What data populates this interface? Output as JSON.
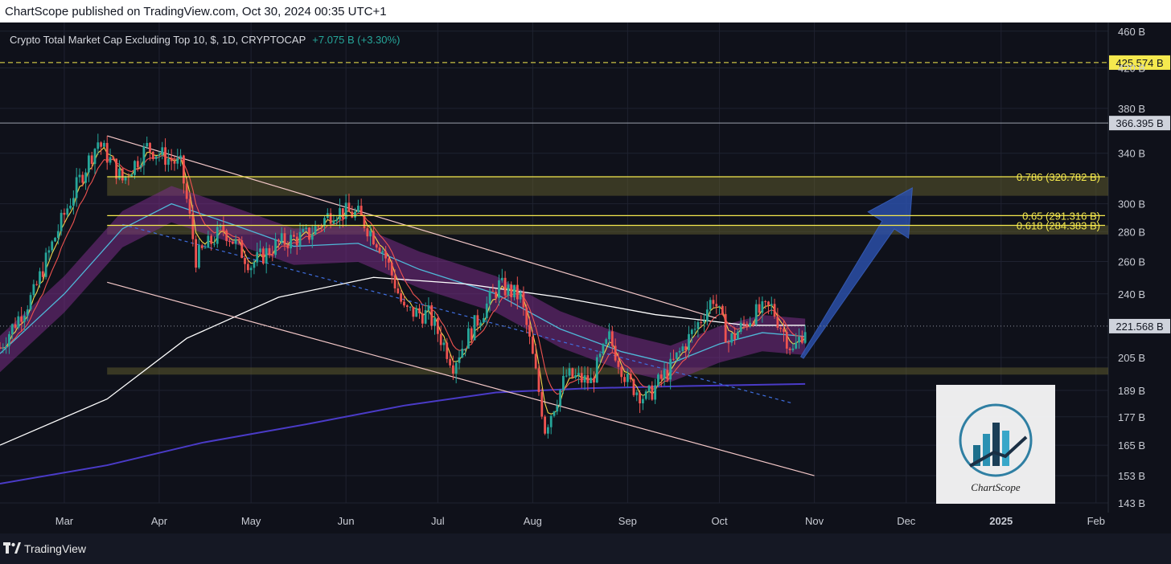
{
  "header": {
    "published": "ChartScope published on TradingView.com, Oct 30, 2024 00:35 UTC+1"
  },
  "symbol": {
    "title": "Crypto Total Market Cap Excluding Top 10, $, 1D, CRYPTOCAP",
    "change": "+7.075 B (+3.30%)"
  },
  "footer": {
    "brand": "TradingView"
  },
  "watermark": {
    "brand": "ChartScope"
  },
  "colors": {
    "background": "#0f111a",
    "up_candle": "#26a69a",
    "down_candle": "#ef5350",
    "fib_line": "#f5e94e",
    "channel": "#f4c8c8",
    "ma_white": "#ffffff",
    "ma_blue": "#4a3bc7",
    "ribbon": "#7a2e86",
    "ribbon_mid": "#4fb8d8",
    "arrow": "#2b4fa8"
  },
  "chart_data": {
    "type": "candlestick",
    "title": "Crypto Total Market Cap Excluding Top 10, $, 1D, CRYPTOCAP",
    "ylim": [
      143,
      470
    ],
    "y_scale": "log",
    "y_ticks": [
      {
        "value": 460,
        "label": "460 B"
      },
      {
        "value": 420,
        "label": "420 B"
      },
      {
        "value": 380,
        "label": "380 B"
      },
      {
        "value": 340,
        "label": "340 B"
      },
      {
        "value": 300,
        "label": "300 B"
      },
      {
        "value": 280,
        "label": "280 B"
      },
      {
        "value": 260,
        "label": "260 B"
      },
      {
        "value": 240,
        "label": "240 B"
      },
      {
        "value": 205,
        "label": "205 B"
      },
      {
        "value": 189,
        "label": "189 B"
      },
      {
        "value": 177,
        "label": "177 B"
      },
      {
        "value": 165,
        "label": "165 B"
      },
      {
        "value": 153,
        "label": "153 B"
      },
      {
        "value": 143,
        "label": "143 B"
      }
    ],
    "x_ticks": [
      {
        "date": "2024-03-01",
        "label": "Mar",
        "bold": false
      },
      {
        "date": "2024-04-01",
        "label": "Apr",
        "bold": false
      },
      {
        "date": "2024-05-01",
        "label": "May",
        "bold": false
      },
      {
        "date": "2024-06-01",
        "label": "Jun",
        "bold": false
      },
      {
        "date": "2024-07-01",
        "label": "Jul",
        "bold": false
      },
      {
        "date": "2024-08-01",
        "label": "Aug",
        "bold": false
      },
      {
        "date": "2024-09-01",
        "label": "Sep",
        "bold": false
      },
      {
        "date": "2024-10-01",
        "label": "Oct",
        "bold": false
      },
      {
        "date": "2024-11-01",
        "label": "Nov",
        "bold": false
      },
      {
        "date": "2024-12-01",
        "label": "Dec",
        "bold": false
      },
      {
        "date": "2025-01-01",
        "label": "2025",
        "bold": true
      },
      {
        "date": "2025-02-01",
        "label": "Feb",
        "bold": false
      }
    ],
    "xlim": [
      "2024-02-09",
      "2025-02-05"
    ],
    "price_path": [
      [
        "2024-02-09",
        210
      ],
      [
        "2024-02-20",
        240
      ],
      [
        "2024-03-01",
        292
      ],
      [
        "2024-03-12",
        350
      ],
      [
        "2024-03-20",
        318
      ],
      [
        "2024-03-28",
        345
      ],
      [
        "2024-04-08",
        330
      ],
      [
        "2024-04-13",
        262
      ],
      [
        "2024-04-22",
        282
      ],
      [
        "2024-05-01",
        258
      ],
      [
        "2024-05-10",
        272
      ],
      [
        "2024-05-20",
        278
      ],
      [
        "2024-05-28",
        295
      ],
      [
        "2024-06-05",
        292
      ],
      [
        "2024-06-13",
        268
      ],
      [
        "2024-06-20",
        230
      ],
      [
        "2024-06-28",
        228
      ],
      [
        "2024-07-06",
        202
      ],
      [
        "2024-07-14",
        225
      ],
      [
        "2024-07-21",
        245
      ],
      [
        "2024-07-28",
        238
      ],
      [
        "2024-08-05",
        172
      ],
      [
        "2024-08-12",
        196
      ],
      [
        "2024-08-20",
        193
      ],
      [
        "2024-08-26",
        215
      ],
      [
        "2024-09-01",
        193
      ],
      [
        "2024-09-07",
        185
      ],
      [
        "2024-09-15",
        200
      ],
      [
        "2024-09-23",
        220
      ],
      [
        "2024-09-29",
        238
      ],
      [
        "2024-10-04",
        213
      ],
      [
        "2024-10-12",
        228
      ],
      [
        "2024-10-18",
        232
      ],
      [
        "2024-10-25",
        208
      ],
      [
        "2024-10-29",
        221
      ]
    ],
    "moving_averages": [
      {
        "style": "white",
        "points": [
          [
            "2024-02-09",
            165
          ],
          [
            "2024-03-15",
            185
          ],
          [
            "2024-04-10",
            215
          ],
          [
            "2024-05-10",
            238
          ],
          [
            "2024-06-10",
            250
          ],
          [
            "2024-07-10",
            246
          ],
          [
            "2024-08-10",
            238
          ],
          [
            "2024-09-10",
            228
          ],
          [
            "2024-10-10",
            222
          ],
          [
            "2024-10-29",
            222
          ]
        ]
      },
      {
        "style": "blue",
        "points": [
          [
            "2024-02-09",
            150
          ],
          [
            "2024-03-15",
            157
          ],
          [
            "2024-04-15",
            166
          ],
          [
            "2024-05-20",
            174
          ],
          [
            "2024-06-20",
            182
          ],
          [
            "2024-07-20",
            188
          ],
          [
            "2024-08-20",
            190
          ],
          [
            "2024-09-20",
            191
          ],
          [
            "2024-10-29",
            192
          ]
        ]
      },
      {
        "style": "ribbon",
        "points": [
          [
            "2024-02-09",
            207
          ],
          [
            "2024-03-01",
            240
          ],
          [
            "2024-03-20",
            282
          ],
          [
            "2024-04-05",
            300
          ],
          [
            "2024-04-25",
            285
          ],
          [
            "2024-05-15",
            270
          ],
          [
            "2024-06-05",
            272
          ],
          [
            "2024-06-25",
            255
          ],
          [
            "2024-07-20",
            240
          ],
          [
            "2024-08-10",
            220
          ],
          [
            "2024-08-30",
            208
          ],
          [
            "2024-09-15",
            202
          ],
          [
            "2024-10-01",
            212
          ],
          [
            "2024-10-15",
            218
          ],
          [
            "2024-10-29",
            216
          ]
        ]
      }
    ],
    "channel_lines": [
      {
        "from": [
          "2024-03-15",
          355
        ],
        "to": [
          "2024-09-30",
          226
        ]
      },
      {
        "from": [
          "2024-03-15",
          247
        ],
        "to": [
          "2024-11-01",
          153
        ]
      }
    ],
    "dashed_trendline": {
      "from": [
        "2024-03-20",
        285
      ],
      "to": [
        "2024-10-25",
        183
      ]
    },
    "horizontal_levels": [
      {
        "value": 425.574,
        "label": "425.574 B",
        "style": "dashed-yellow"
      },
      {
        "value": 366.395,
        "label": "366.395 B",
        "style": "grey"
      },
      {
        "value": 221.568,
        "label": "221.568 B",
        "style": "dotted-current"
      }
    ],
    "fib_levels": [
      {
        "ratio": "0.786",
        "value": 320.782,
        "label": "0.786 (320.782 B)"
      },
      {
        "ratio": "0.65",
        "value": 291.316,
        "label": "0.65 (291.316 B)"
      },
      {
        "ratio": "0.618",
        "value": 284.383,
        "label": "0.618 (284.383 B)"
      }
    ],
    "zones": [
      {
        "from": 306,
        "to": 320.8
      },
      {
        "from": 278,
        "to": 284.4
      },
      {
        "from": 196.5,
        "to": 200
      }
    ],
    "projection_arrow": {
      "from": [
        "2024-10-28",
        205
      ],
      "to": [
        "2024-12-03",
        312
      ]
    }
  }
}
